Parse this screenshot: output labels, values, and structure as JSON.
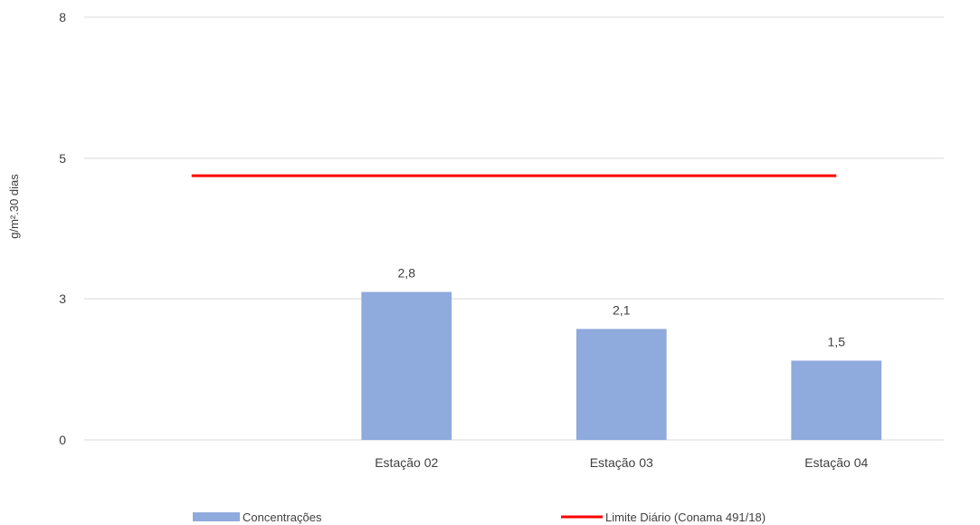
{
  "chart_data": {
    "type": "bar",
    "ylabel": "g/m².30 dias",
    "ylim": [
      0,
      8
    ],
    "yticks": [
      {
        "value": 0,
        "label": "0"
      },
      {
        "value": 2.67,
        "label": "3"
      },
      {
        "value": 5.33,
        "label": "5"
      },
      {
        "value": 8,
        "label": "8"
      }
    ],
    "x_slots": 4,
    "categories": [
      "Estação 02",
      "Estação 03",
      "Estação 04"
    ],
    "series": [
      {
        "name": "Concentrações",
        "type": "bar",
        "color": "#8faadc",
        "values": [
          2.8,
          2.1,
          1.5
        ],
        "labels": [
          "2,8",
          "2,1",
          "1,5"
        ]
      },
      {
        "name": "Limite Diário (Conama 491/18)",
        "type": "line",
        "color": "#ff0000",
        "value": 5
      }
    ],
    "grid": true,
    "legend_position": "bottom"
  }
}
